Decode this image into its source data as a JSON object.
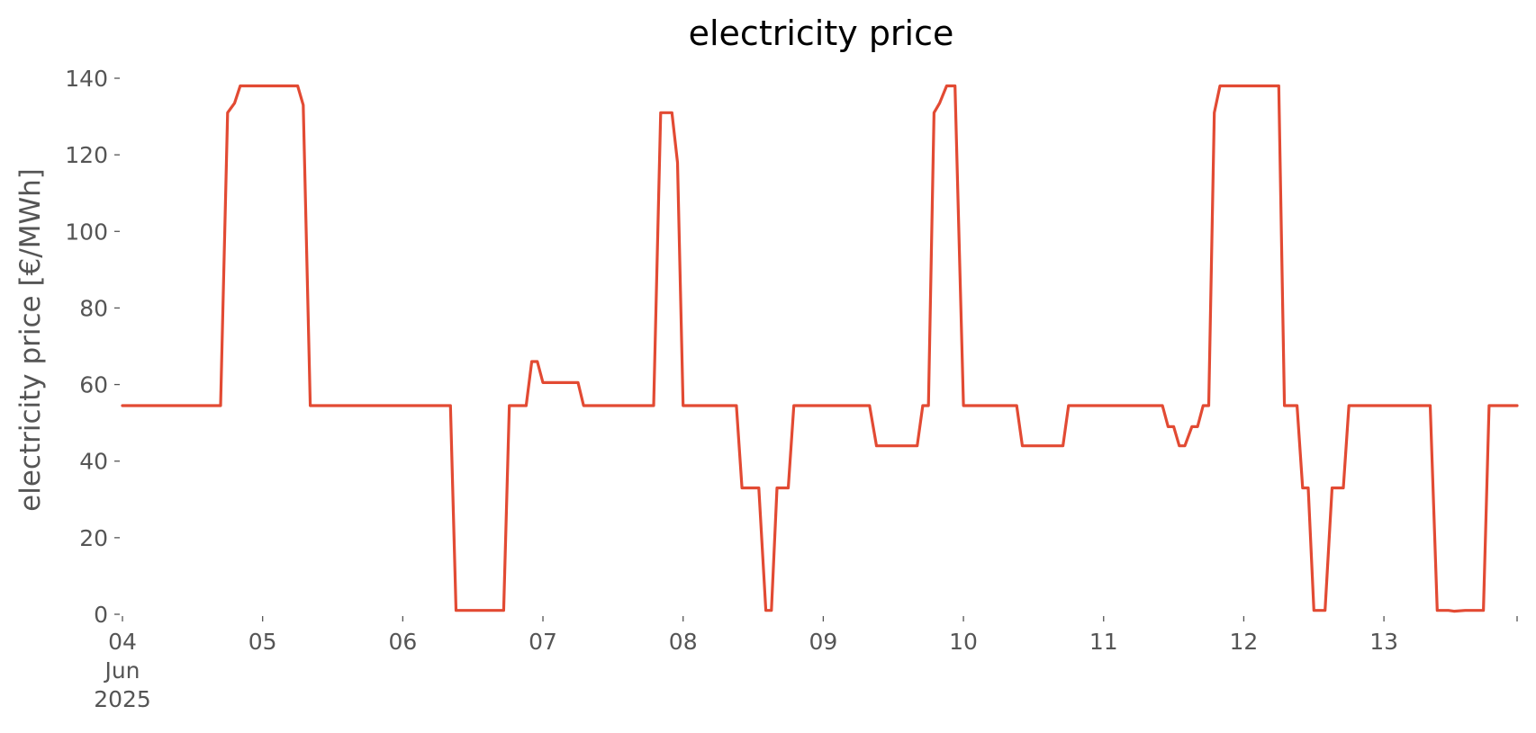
{
  "chart_data": {
    "type": "line",
    "title": "electricity price",
    "ylabel": "electricity price [€/MWh]",
    "xlabel": "",
    "ylim": [
      0,
      140
    ],
    "yticks": [
      0,
      20,
      40,
      60,
      80,
      100,
      120,
      140
    ],
    "xlim": [
      0,
      9.95
    ],
    "x_unit": "days from 04 Jun 2025 00:00",
    "xticks": [
      {
        "x": 0,
        "lines": [
          "04",
          "Jun",
          "2025"
        ]
      },
      {
        "x": 1,
        "lines": [
          "05"
        ]
      },
      {
        "x": 2,
        "lines": [
          "06"
        ]
      },
      {
        "x": 3,
        "lines": [
          "07"
        ]
      },
      {
        "x": 4,
        "lines": [
          "08"
        ]
      },
      {
        "x": 5,
        "lines": [
          "09"
        ]
      },
      {
        "x": 6,
        "lines": [
          "10"
        ]
      },
      {
        "x": 7,
        "lines": [
          "11"
        ]
      },
      {
        "x": 8,
        "lines": [
          "12"
        ]
      },
      {
        "x": 9,
        "lines": [
          "13"
        ]
      },
      {
        "x": 9.95,
        "lines": []
      }
    ],
    "grid": false,
    "series": [
      {
        "color": "#e24a33",
        "points": [
          [
            0.0,
            54.5
          ],
          [
            0.7,
            54.5
          ],
          [
            0.75,
            131
          ],
          [
            0.8,
            133.5
          ],
          [
            0.84,
            138
          ],
          [
            1.25,
            138
          ],
          [
            1.29,
            133
          ],
          [
            1.34,
            54.5
          ],
          [
            2.34,
            54.5
          ],
          [
            2.38,
            1
          ],
          [
            2.72,
            1
          ],
          [
            2.76,
            54.5
          ],
          [
            2.88,
            54.5
          ],
          [
            2.92,
            66
          ],
          [
            2.96,
            66
          ],
          [
            3.0,
            60.5
          ],
          [
            3.25,
            60.5
          ],
          [
            3.29,
            54.5
          ],
          [
            3.79,
            54.5
          ],
          [
            3.84,
            131
          ],
          [
            3.92,
            131
          ],
          [
            3.96,
            118
          ],
          [
            4.0,
            54.5
          ],
          [
            4.38,
            54.5
          ],
          [
            4.42,
            33
          ],
          [
            4.54,
            33
          ],
          [
            4.59,
            1
          ],
          [
            4.63,
            1
          ],
          [
            4.67,
            33
          ],
          [
            4.75,
            33
          ],
          [
            4.79,
            54.5
          ],
          [
            5.33,
            54.5
          ],
          [
            5.38,
            44
          ],
          [
            5.67,
            44
          ],
          [
            5.71,
            54.5
          ],
          [
            5.75,
            54.5
          ],
          [
            5.79,
            131
          ],
          [
            5.83,
            133.5
          ],
          [
            5.88,
            138
          ],
          [
            5.94,
            138
          ],
          [
            6.0,
            54.5
          ],
          [
            6.38,
            54.5
          ],
          [
            6.42,
            44
          ],
          [
            6.71,
            44
          ],
          [
            6.75,
            54.5
          ],
          [
            7.42,
            54.5
          ],
          [
            7.46,
            49
          ],
          [
            7.5,
            49
          ],
          [
            7.54,
            44
          ],
          [
            7.58,
            44
          ],
          [
            7.63,
            49
          ],
          [
            7.67,
            49
          ],
          [
            7.71,
            54.5
          ],
          [
            7.75,
            54.5
          ],
          [
            7.79,
            131
          ],
          [
            7.83,
            138
          ],
          [
            8.25,
            138
          ],
          [
            8.29,
            54.5
          ],
          [
            8.38,
            54.5
          ],
          [
            8.42,
            33
          ],
          [
            8.46,
            33
          ],
          [
            8.5,
            1
          ],
          [
            8.58,
            1
          ],
          [
            8.63,
            33
          ],
          [
            8.71,
            33
          ],
          [
            8.75,
            54.5
          ],
          [
            9.33,
            54.5
          ],
          [
            9.38,
            1
          ],
          [
            9.46,
            1
          ],
          [
            9.5,
            0.8
          ],
          [
            9.58,
            1
          ],
          [
            9.71,
            1
          ],
          [
            9.75,
            54.5
          ],
          [
            9.95,
            54.5
          ]
        ]
      }
    ]
  }
}
